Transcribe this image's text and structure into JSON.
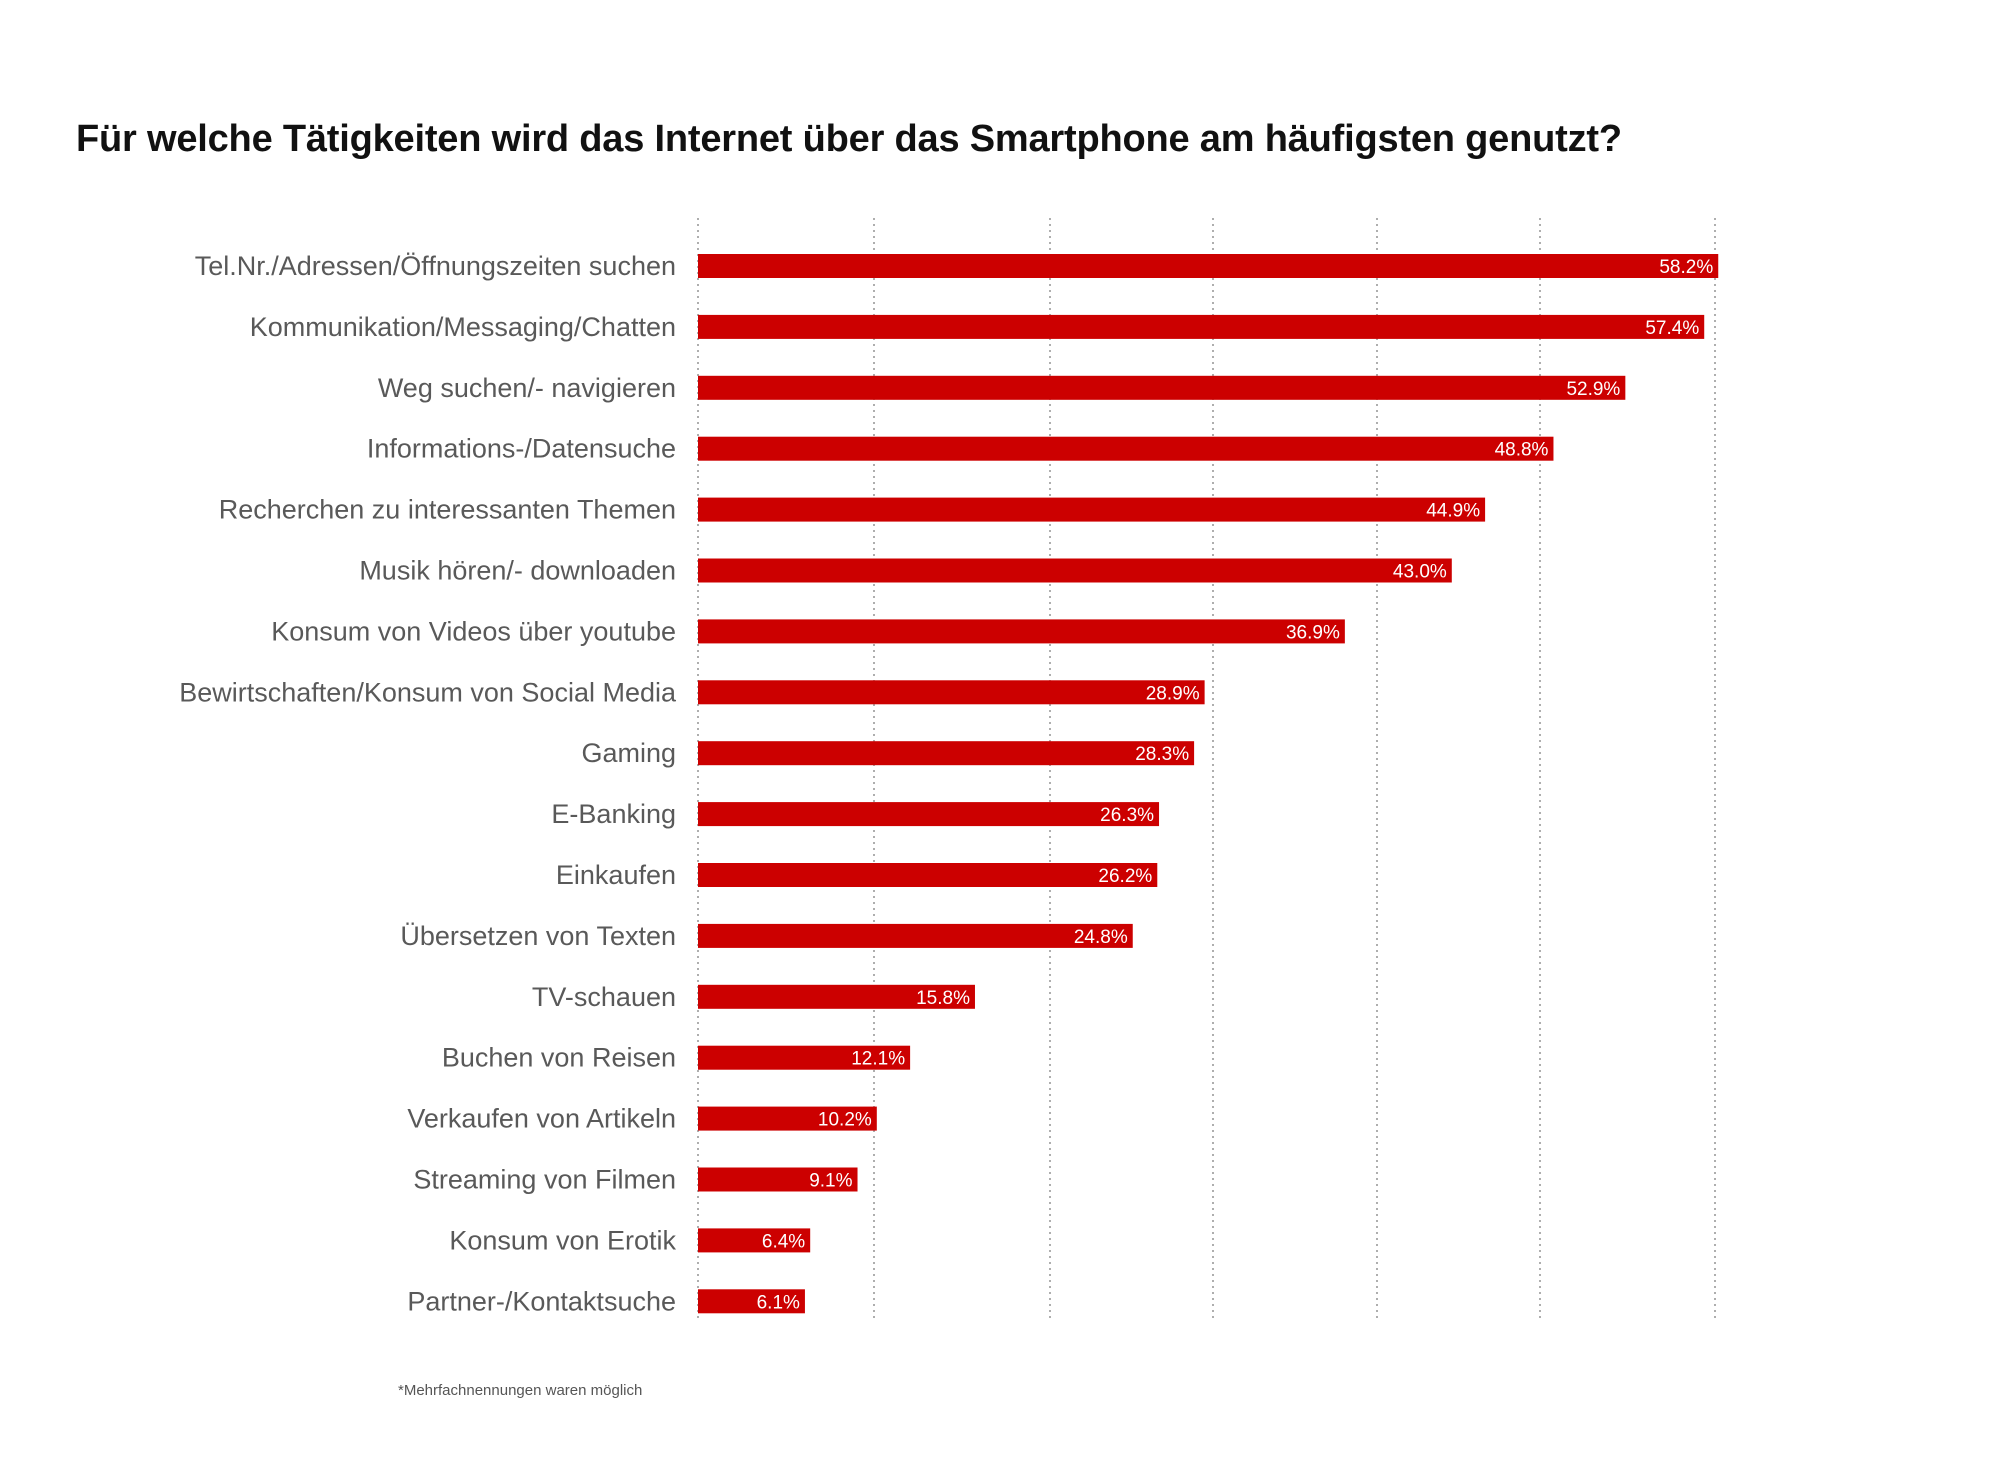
{
  "title": "Für welche Tätigkeiten wird das Internet über das Smartphone am häufigsten genutzt?",
  "footnote": "*Mehrfachnennungen waren möglich",
  "colors": {
    "bar": "#cc0000",
    "label_text": "#595959",
    "value_text": "#ffffff",
    "gridline": "#9a9a9a"
  },
  "chart_data": {
    "type": "bar",
    "orientation": "horizontal",
    "title": "Für welche Tätigkeiten wird das Internet über das Smartphone am häufigsten genutzt?",
    "xlabel": "",
    "ylabel": "",
    "xlim": [
      0,
      62.5
    ],
    "grid": true,
    "grid_style": "dotted vertical",
    "legend": "none",
    "categories": [
      "Tel.Nr./Adressen/Öffnungszeiten suchen",
      "Kommunikation/Messaging/Chatten",
      "Weg suchen/- navigieren",
      "Informations-/Datensuche",
      "Recherchen zu interessanten Themen",
      "Musik hören/- downloaden",
      "Konsum von Videos über youtube",
      "Bewirtschaften/Konsum von Social Media",
      "Gaming",
      "E-Banking",
      "Einkaufen",
      "Übersetzen von Texten",
      "TV-schauen",
      "Buchen von Reisen",
      "Verkaufen von Artikeln",
      "Streaming von Filmen",
      "Konsum von Erotik",
      "Partner-/Kontaktsuche"
    ],
    "values": [
      58.2,
      57.4,
      52.9,
      48.8,
      44.9,
      43.0,
      36.9,
      28.9,
      28.3,
      26.3,
      26.2,
      24.8,
      15.8,
      12.1,
      10.2,
      9.1,
      6.4,
      6.1
    ],
    "value_labels": [
      "58.2%",
      "57.4%",
      "52.9%",
      "48.8%",
      "44.9%",
      "43.0%",
      "36.9%",
      "28.9%",
      "28.3%",
      "26.3%",
      "26.2%",
      "24.8%",
      "15.8%",
      "12.1%",
      "10.2%",
      "9.1%",
      "6.4%",
      "6.1%"
    ],
    "unit": "%"
  }
}
